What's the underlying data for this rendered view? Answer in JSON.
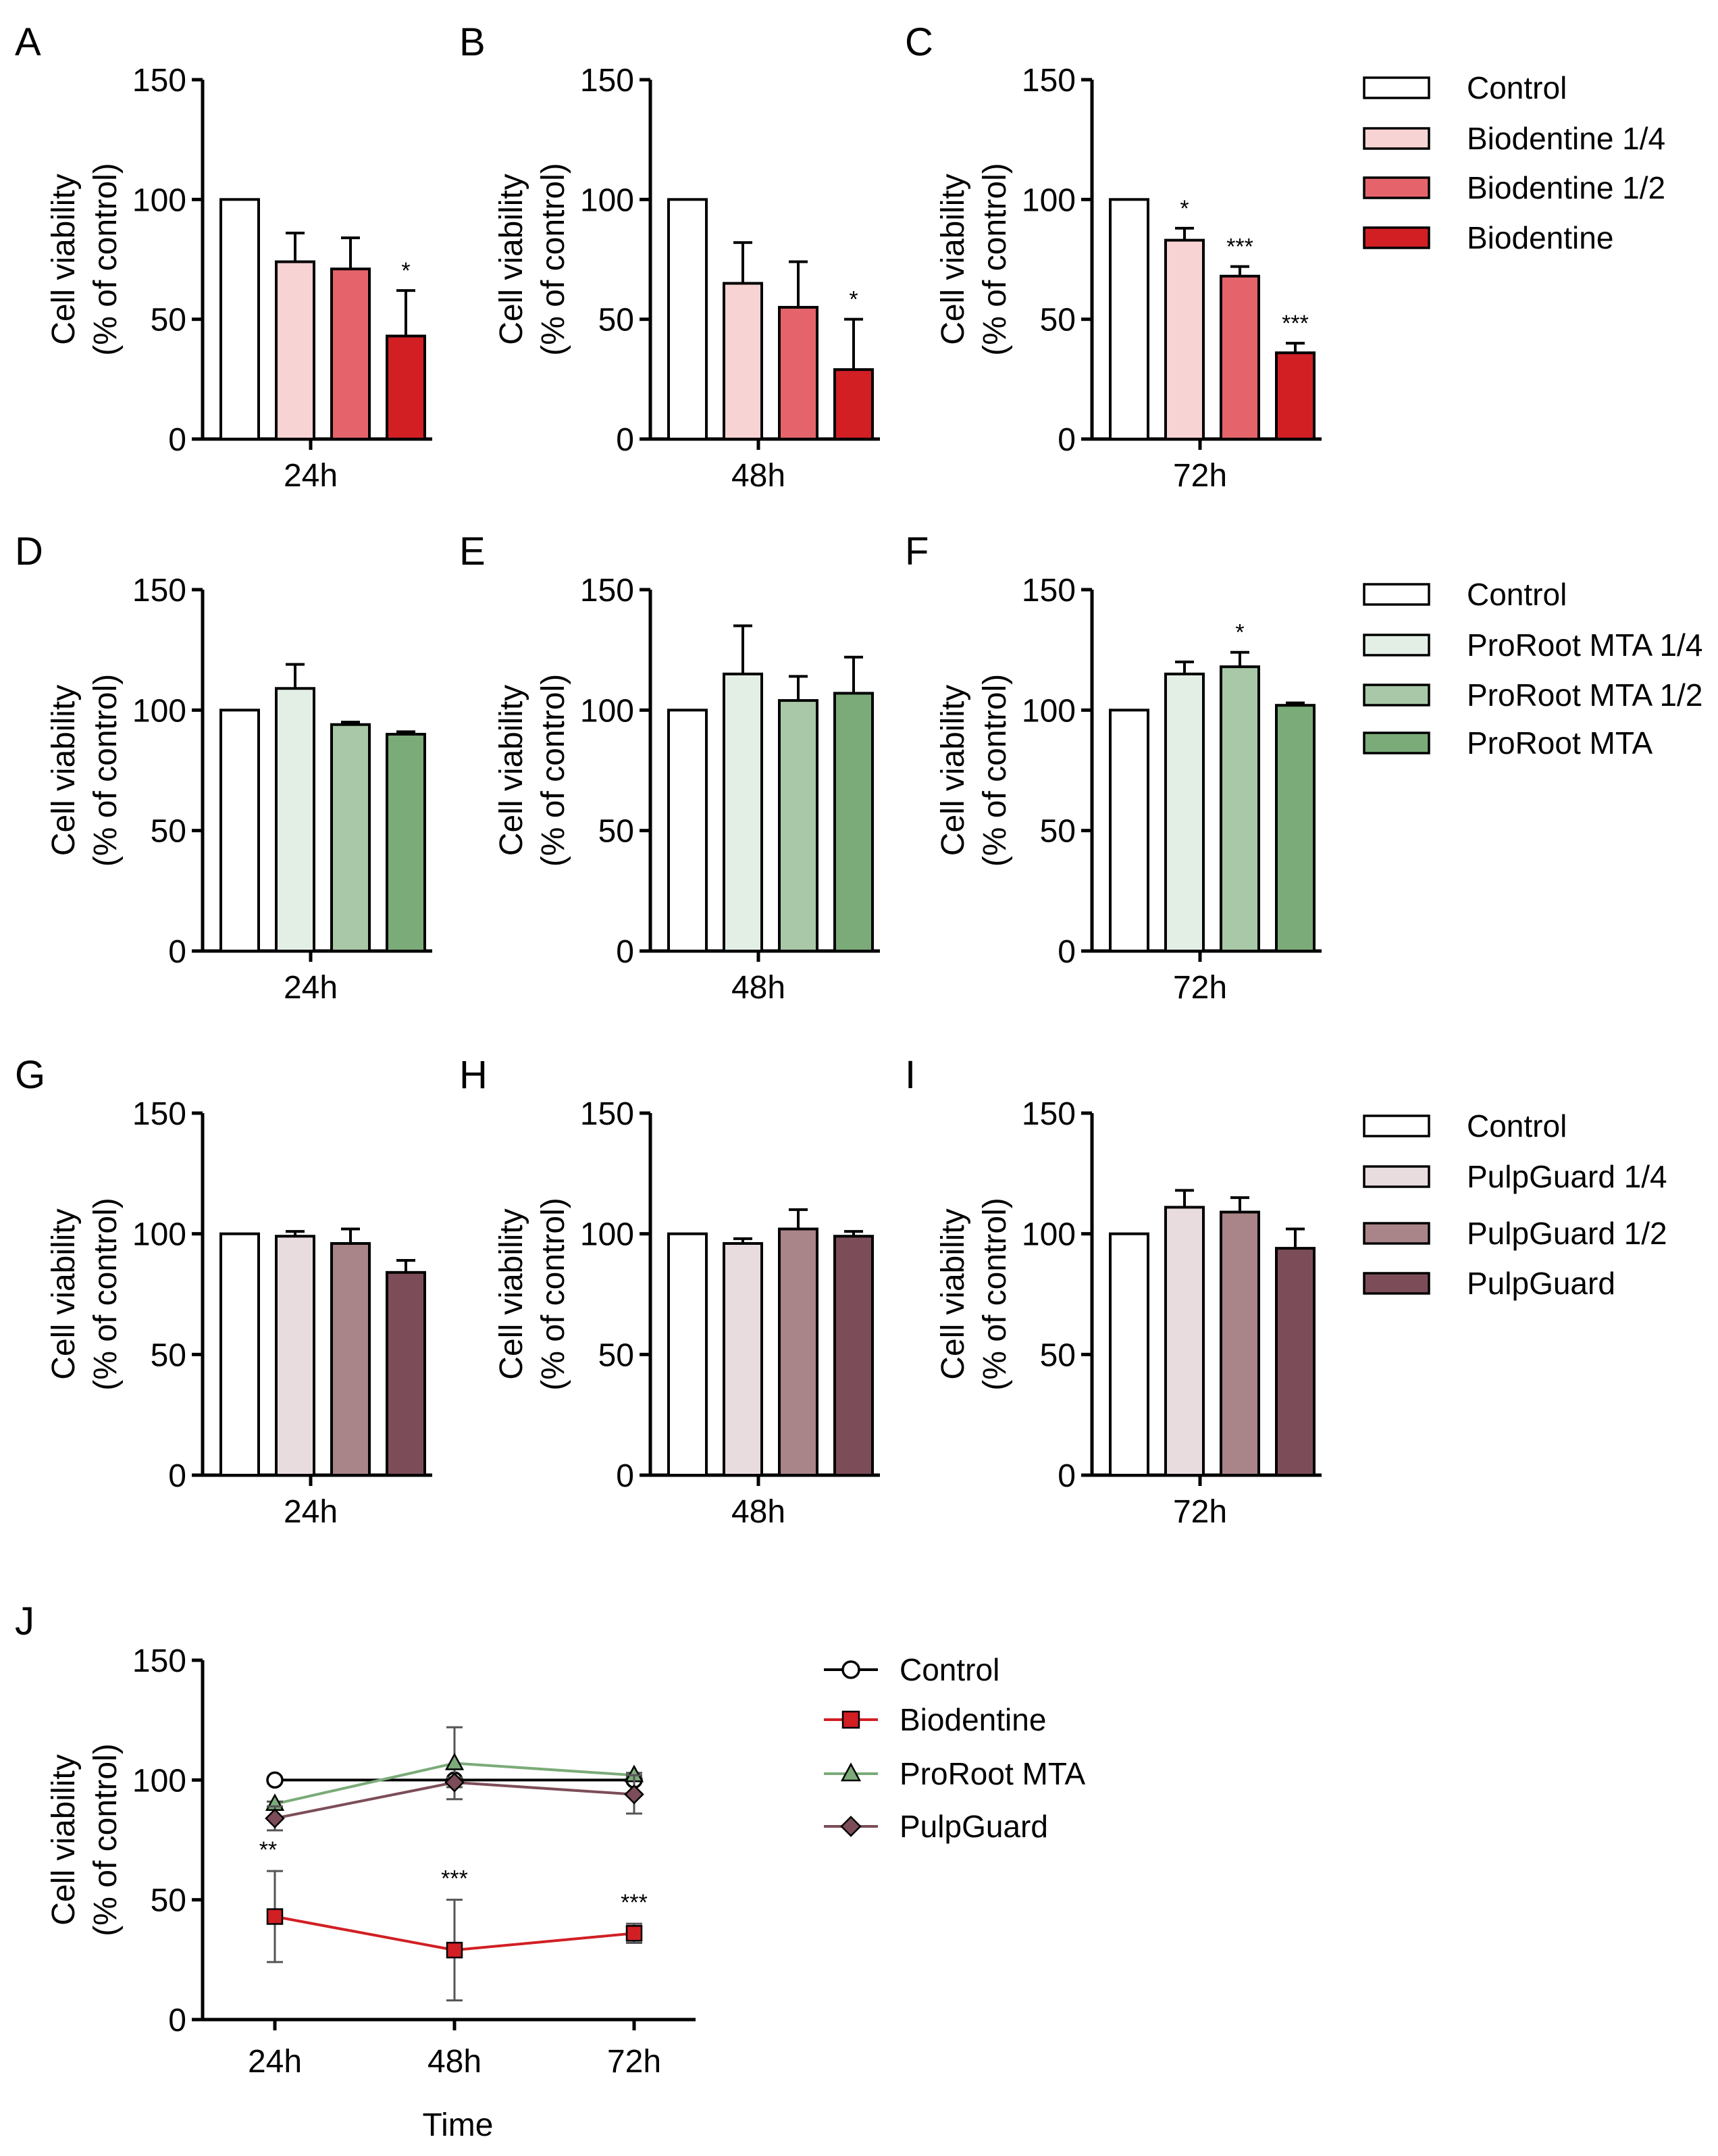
{
  "chart_data": [
    {
      "panel": "A",
      "type": "bar",
      "group": "24h",
      "ylabel": [
        "Cell viability",
        "(% of control)"
      ],
      "ylim": [
        0,
        150
      ],
      "yticks": [
        0,
        50,
        100,
        150
      ],
      "series": [
        {
          "name": "Control",
          "value": 100,
          "error": 0,
          "sig": "",
          "color": "#ffffff"
        },
        {
          "name": "Biodentine 1/4",
          "value": 74,
          "error": 12,
          "sig": "",
          "color": "#f8d3d3"
        },
        {
          "name": "Biodentine 1/2",
          "value": 71,
          "error": 13,
          "sig": "",
          "color": "#e5646c"
        },
        {
          "name": "Biodentine",
          "value": 43,
          "error": 19,
          "sig": "*",
          "color": "#d11f24"
        }
      ]
    },
    {
      "panel": "B",
      "type": "bar",
      "group": "48h",
      "ylabel": [
        "Cell viability",
        "(% of control)"
      ],
      "ylim": [
        0,
        150
      ],
      "yticks": [
        0,
        50,
        100,
        150
      ],
      "series": [
        {
          "name": "Control",
          "value": 100,
          "error": 0,
          "sig": "",
          "color": "#ffffff"
        },
        {
          "name": "Biodentine 1/4",
          "value": 65,
          "error": 17,
          "sig": "",
          "color": "#f8d3d3"
        },
        {
          "name": "Biodentine 1/2",
          "value": 55,
          "error": 19,
          "sig": "",
          "color": "#e5646c"
        },
        {
          "name": "Biodentine",
          "value": 29,
          "error": 21,
          "sig": "*",
          "color": "#d11f24"
        }
      ]
    },
    {
      "panel": "C",
      "type": "bar",
      "group": "72h",
      "ylabel": [
        "Cell viability",
        "(% of control)"
      ],
      "ylim": [
        0,
        150
      ],
      "yticks": [
        0,
        50,
        100,
        150
      ],
      "series": [
        {
          "name": "Control",
          "value": 100,
          "error": 0,
          "sig": "",
          "color": "#ffffff"
        },
        {
          "name": "Biodentine 1/4",
          "value": 83,
          "error": 5,
          "sig": "*",
          "color": "#f8d3d3"
        },
        {
          "name": "Biodentine 1/2",
          "value": 68,
          "error": 4,
          "sig": "***",
          "color": "#e5646c"
        },
        {
          "name": "Biodentine",
          "value": 36,
          "error": 4,
          "sig": "***",
          "color": "#d11f24"
        }
      ]
    },
    {
      "panel": "D",
      "type": "bar",
      "group": "24h",
      "ylabel": [
        "Cell viability",
        "(% of control)"
      ],
      "ylim": [
        0,
        150
      ],
      "yticks": [
        0,
        50,
        100,
        150
      ],
      "series": [
        {
          "name": "Control",
          "value": 100,
          "error": 0,
          "sig": "",
          "color": "#ffffff"
        },
        {
          "name": "ProRoot MTA 1/4",
          "value": 109,
          "error": 10,
          "sig": "",
          "color": "#e3efe5"
        },
        {
          "name": "ProRoot MTA 1/2",
          "value": 94,
          "error": 1,
          "sig": "",
          "color": "#a8c8a8"
        },
        {
          "name": "ProRoot MTA",
          "value": 90,
          "error": 1,
          "sig": "",
          "color": "#7bab79"
        }
      ]
    },
    {
      "panel": "E",
      "type": "bar",
      "group": "48h",
      "ylabel": [
        "Cell viability",
        "(% of control)"
      ],
      "ylim": [
        0,
        150
      ],
      "yticks": [
        0,
        50,
        100,
        150
      ],
      "series": [
        {
          "name": "Control",
          "value": 100,
          "error": 0,
          "sig": "",
          "color": "#ffffff"
        },
        {
          "name": "ProRoot MTA 1/4",
          "value": 115,
          "error": 20,
          "sig": "",
          "color": "#e3efe5"
        },
        {
          "name": "ProRoot MTA 1/2",
          "value": 104,
          "error": 10,
          "sig": "",
          "color": "#a8c8a8"
        },
        {
          "name": "ProRoot MTA",
          "value": 107,
          "error": 15,
          "sig": "",
          "color": "#7bab79"
        }
      ]
    },
    {
      "panel": "F",
      "type": "bar",
      "group": "72h",
      "ylabel": [
        "Cell viability",
        "(% of control)"
      ],
      "ylim": [
        0,
        150
      ],
      "yticks": [
        0,
        50,
        100,
        150
      ],
      "series": [
        {
          "name": "Control",
          "value": 100,
          "error": 0,
          "sig": "",
          "color": "#ffffff"
        },
        {
          "name": "ProRoot MTA 1/4",
          "value": 115,
          "error": 5,
          "sig": "",
          "color": "#e3efe5"
        },
        {
          "name": "ProRoot MTA 1/2",
          "value": 118,
          "error": 6,
          "sig": "*",
          "color": "#a8c8a8"
        },
        {
          "name": "ProRoot MTA",
          "value": 102,
          "error": 1,
          "sig": "",
          "color": "#7bab79"
        }
      ]
    },
    {
      "panel": "G",
      "type": "bar",
      "group": "24h",
      "ylabel": [
        "Cell viability",
        "(% of control)"
      ],
      "ylim": [
        0,
        150
      ],
      "yticks": [
        0,
        50,
        100,
        150
      ],
      "series": [
        {
          "name": "Control",
          "value": 100,
          "error": 0,
          "sig": "",
          "color": "#ffffff"
        },
        {
          "name": "PulpGuard 1/4",
          "value": 99,
          "error": 2,
          "sig": "",
          "color": "#e9dcdf"
        },
        {
          "name": "PulpGuard 1/2",
          "value": 96,
          "error": 6,
          "sig": "",
          "color": "#a98488"
        },
        {
          "name": "PulpGuard",
          "value": 84,
          "error": 5,
          "sig": "",
          "color": "#7c4d58"
        }
      ]
    },
    {
      "panel": "H",
      "type": "bar",
      "group": "48h",
      "ylabel": [
        "Cell viability",
        "(% of control)"
      ],
      "ylim": [
        0,
        150
      ],
      "yticks": [
        0,
        50,
        100,
        150
      ],
      "series": [
        {
          "name": "Control",
          "value": 100,
          "error": 0,
          "sig": "",
          "color": "#ffffff"
        },
        {
          "name": "PulpGuard 1/4",
          "value": 96,
          "error": 2,
          "sig": "",
          "color": "#e9dcdf"
        },
        {
          "name": "PulpGuard 1/2",
          "value": 102,
          "error": 8,
          "sig": "",
          "color": "#a98488"
        },
        {
          "name": "PulpGuard",
          "value": 99,
          "error": 2,
          "sig": "",
          "color": "#7c4d58"
        }
      ]
    },
    {
      "panel": "I",
      "type": "bar",
      "group": "72h",
      "ylabel": [
        "Cell viability",
        "(% of control)"
      ],
      "ylim": [
        0,
        150
      ],
      "yticks": [
        0,
        50,
        100,
        150
      ],
      "series": [
        {
          "name": "Control",
          "value": 100,
          "error": 0,
          "sig": "",
          "color": "#ffffff"
        },
        {
          "name": "PulpGuard 1/4",
          "value": 111,
          "error": 7,
          "sig": "",
          "color": "#e9dcdf"
        },
        {
          "name": "PulpGuard 1/2",
          "value": 109,
          "error": 6,
          "sig": "",
          "color": "#a98488"
        },
        {
          "name": "PulpGuard",
          "value": 94,
          "error": 8,
          "sig": "",
          "color": "#7c4d58"
        }
      ]
    },
    {
      "panel": "J",
      "type": "line",
      "x": [
        "24h",
        "48h",
        "72h"
      ],
      "xlabel": "Time",
      "ylabel": [
        "Cell viability",
        "(% of control)"
      ],
      "ylim": [
        0,
        150
      ],
      "yticks": [
        0,
        50,
        100,
        150
      ],
      "series": [
        {
          "name": "Control",
          "values": [
            100,
            100,
            100
          ],
          "errors": [
            0,
            0,
            0
          ],
          "color": "#000000",
          "marker": "circle",
          "sig": [
            "",
            "",
            ""
          ]
        },
        {
          "name": "Biodentine",
          "values": [
            43,
            29,
            36
          ],
          "errors": [
            19,
            21,
            4
          ],
          "color": "#d11f24",
          "marker": "square",
          "sig": [
            "**",
            "***",
            "***"
          ]
        },
        {
          "name": "ProRoot MTA",
          "values": [
            90,
            107,
            102
          ],
          "errors": [
            1,
            15,
            1
          ],
          "color": "#7bab79",
          "marker": "triangle",
          "sig": [
            "",
            "",
            ""
          ]
        },
        {
          "name": "PulpGuard",
          "values": [
            84,
            99,
            94
          ],
          "errors": [
            5,
            2,
            8
          ],
          "color": "#7c4d58",
          "marker": "diamond",
          "sig": [
            "",
            "",
            ""
          ]
        }
      ]
    }
  ],
  "legends": [
    {
      "row": 1,
      "items": [
        {
          "label": "Control",
          "color": "#ffffff"
        },
        {
          "label": "Biodentine 1/4",
          "color": "#f8d3d3"
        },
        {
          "label": "Biodentine 1/2",
          "color": "#e5646c"
        },
        {
          "label": "Biodentine",
          "color": "#d11f24"
        }
      ]
    },
    {
      "row": 2,
      "items": [
        {
          "label": "Control",
          "color": "#ffffff"
        },
        {
          "label": "ProRoot MTA 1/4",
          "color": "#e3efe5"
        },
        {
          "label": "ProRoot MTA 1/2",
          "color": "#a8c8a8"
        },
        {
          "label": "ProRoot MTA",
          "color": "#7bab79"
        }
      ]
    },
    {
      "row": 3,
      "items": [
        {
          "label": "Control",
          "color": "#ffffff"
        },
        {
          "label": "PulpGuard 1/4",
          "color": "#e9dcdf"
        },
        {
          "label": "PulpGuard 1/2",
          "color": "#a98488"
        },
        {
          "label": "PulpGuard",
          "color": "#7c4d58"
        }
      ]
    },
    {
      "row": 4,
      "items": [
        {
          "label": "Control",
          "color": "#000000",
          "marker": "circle"
        },
        {
          "label": "Biodentine",
          "color": "#d11f24",
          "marker": "square"
        },
        {
          "label": "ProRoot MTA",
          "color": "#7bab79",
          "marker": "triangle"
        },
        {
          "label": "PulpGuard",
          "color": "#7c4d58",
          "marker": "diamond"
        }
      ]
    }
  ]
}
